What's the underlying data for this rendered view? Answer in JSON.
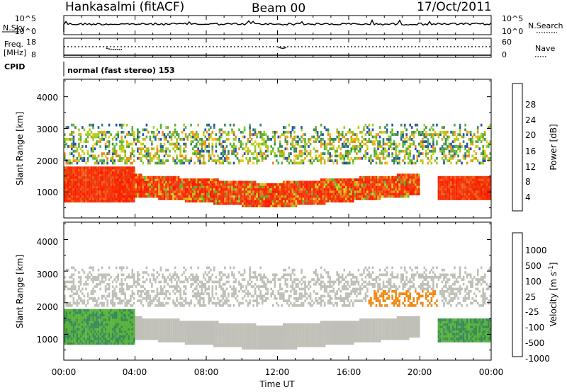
{
  "header": {
    "station": "Hankasalmi (fitACF)",
    "beam": "Beam 00",
    "date": "17/Oct/2011"
  },
  "noise_panel": {
    "left_label": "N.Sky",
    "right_label": "N.Search",
    "left_ticks": [
      "10^5",
      "10^0"
    ],
    "right_ticks": [
      "10^5",
      "10^0"
    ]
  },
  "freq_panel": {
    "left_label_line1": "Freq.",
    "left_label_line2": "[MHz]",
    "right_label": "Nave",
    "left_ticks": [
      "18",
      "8"
    ],
    "right_ticks": [
      "60",
      "0"
    ]
  },
  "cpid": {
    "label": "CPID",
    "text": "normal (fast stereo) 153"
  },
  "chart_data": [
    {
      "type": "heatmap",
      "title": "",
      "xlabel": "",
      "ylabel": "Slant Range [km]",
      "x_ticks": [
        "00:00",
        "04:00",
        "08:00",
        "12:00",
        "16:00",
        "20:00",
        "00:00"
      ],
      "xlim_hours": [
        0,
        24
      ],
      "y_ticks": [
        "1000",
        "2000",
        "3000",
        "4000"
      ],
      "ylim": [
        180,
        4550
      ],
      "colorbar": {
        "label": "Power [dB]",
        "ticks": [
          "4",
          "8",
          "12",
          "16",
          "20",
          "24",
          "28"
        ],
        "range": [
          0,
          30
        ],
        "colors": [
          "#1a1aff",
          "#2850b4",
          "#3a8a5a",
          "#5ab43c",
          "#a0d020",
          "#f0c818",
          "#f5a020",
          "#f07818",
          "#f05018",
          "#ff1a00"
        ]
      },
      "bands": [
        {
          "name": "near",
          "t_start": 0,
          "t_end": 24,
          "range_low": 650,
          "range_high": 1700,
          "level": "high"
        },
        {
          "name": "arc",
          "t_start": 6,
          "t_end": 20,
          "range_low": 900,
          "range_high": 1700,
          "level": "high"
        },
        {
          "name": "far",
          "t_start": 0,
          "t_end": 24,
          "range_low": 1800,
          "range_high": 3100,
          "level": "mixed"
        }
      ]
    },
    {
      "type": "heatmap",
      "title": "",
      "xlabel": "Time UT",
      "ylabel": "Slant Range [km]",
      "x_ticks": [
        "00:00",
        "04:00",
        "08:00",
        "12:00",
        "16:00",
        "20:00",
        "00:00"
      ],
      "xlim_hours": [
        0,
        24
      ],
      "y_ticks": [
        "1000",
        "2000",
        "3000",
        "4000"
      ],
      "ylim": [
        180,
        4550
      ],
      "colorbar": {
        "label": "Velocity [m s-1]",
        "label_main": "Velocity [m s",
        "label_sup": "-1",
        "label_end": "]",
        "ticks": [
          "1000",
          "500",
          "100",
          "25",
          "-25",
          "-100",
          "-500",
          "-1000"
        ],
        "range": [
          -1500,
          1500
        ],
        "colors": [
          "#ff1a00",
          "#ff5a10",
          "#f08a18",
          "#f0b018",
          "#c0c0b8",
          "#c0c0b8",
          "#5ab43c",
          "#3a8a5a",
          "#2850b4",
          "#1a3aa0"
        ]
      }
    }
  ]
}
